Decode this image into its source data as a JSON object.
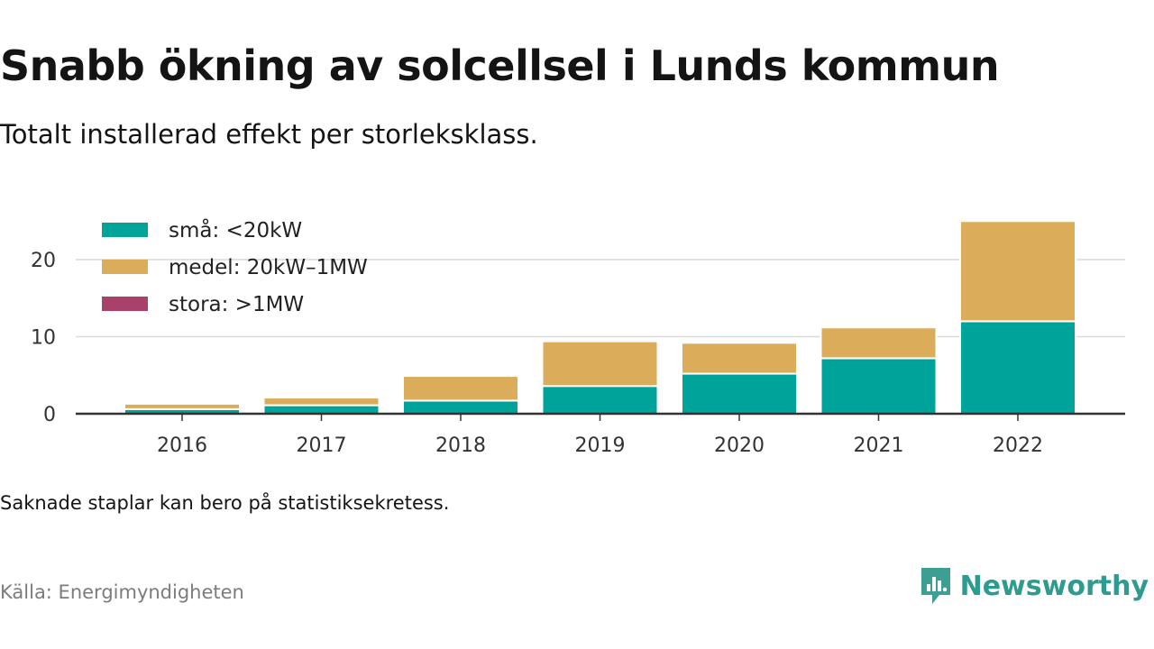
{
  "title": "Snabb ökning av solcellsel i Lunds kommun",
  "subtitle": "Totalt installerad effekt per storleksklass.",
  "note": "Saknade staplar kan bero på statistiksekretess.",
  "source": "Källa: Energimyndigheten",
  "brand": {
    "name": "Newsworthy",
    "icon": "newsworthy-logo-icon"
  },
  "chart_data": {
    "type": "bar",
    "stacked": true,
    "categories": [
      "2016",
      "2017",
      "2018",
      "2019",
      "2020",
      "2021",
      "2022"
    ],
    "series": [
      {
        "name": "små: <20kW",
        "color": "#00a39a",
        "values": [
          0.6,
          1.1,
          1.7,
          3.6,
          5.2,
          7.2,
          12.0
        ]
      },
      {
        "name": "medel: 20kW–1MW",
        "color": "#dbac5a",
        "values": [
          0.7,
          1.0,
          3.2,
          5.8,
          4.0,
          4.0,
          13.0
        ]
      },
      {
        "name": "stora: >1MW",
        "color": "#a8426a",
        "values": [
          0,
          0,
          0,
          0,
          0,
          0,
          0
        ]
      }
    ],
    "yticks": [
      0,
      10,
      20
    ],
    "ylim": [
      0,
      25
    ],
    "grid": true,
    "legend_position": "top-left",
    "xlabel": "",
    "ylabel": ""
  }
}
